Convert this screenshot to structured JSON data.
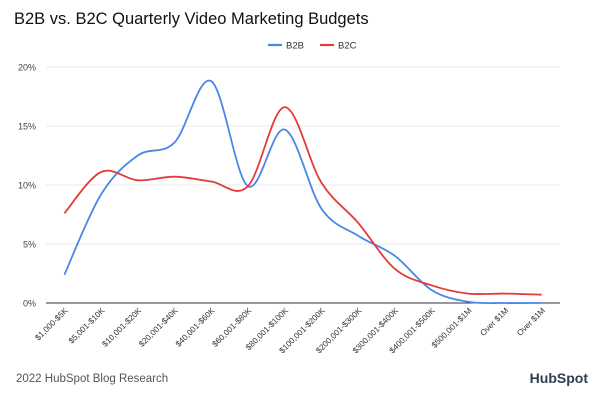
{
  "header": {
    "title": "B2B vs. B2C Quarterly Video Marketing Budgets"
  },
  "footer": {
    "source": "2022 HubSpot Blog Research",
    "brand": "HubSpot"
  },
  "colors": {
    "b2b": "#4a86e8",
    "b2c": "#e33b3b",
    "grid": "#e0e0e0",
    "axis": "#333333"
  },
  "chart_data": {
    "type": "line",
    "title": "B2B vs. B2C Quarterly Video Marketing Budgets",
    "xlabel": "",
    "ylabel": "",
    "ylim": [
      0,
      20
    ],
    "yticks": [
      "0%",
      "5%",
      "10%",
      "15%",
      "20%"
    ],
    "ytick_values": [
      0,
      5,
      10,
      15,
      20
    ],
    "grid": true,
    "legend": "top-center",
    "categories": [
      "$1,000-$5K",
      "$5,001-$10K",
      "$10,001-$20K",
      "$20,001-$40K",
      "$40,001-$60K",
      "$60,001-$80K",
      "$80,001-$100K",
      "$100,001-$200K",
      "$200,001-$300K",
      "$300,001-$400K",
      "$400,001-$500K",
      "$500,001-$1M",
      "Over $1M",
      "Over $1M"
    ],
    "series": [
      {
        "name": "B2B",
        "values": [
          2.4,
          9.2,
          12.5,
          13.6,
          18.8,
          9.9,
          14.7,
          8.0,
          5.7,
          4.0,
          1.1,
          0.1,
          0.0,
          0.0
        ]
      },
      {
        "name": "B2C",
        "values": [
          7.6,
          11.1,
          10.4,
          10.7,
          10.3,
          9.9,
          16.6,
          10.2,
          6.8,
          2.9,
          1.5,
          0.8,
          0.8,
          0.7
        ]
      }
    ]
  }
}
